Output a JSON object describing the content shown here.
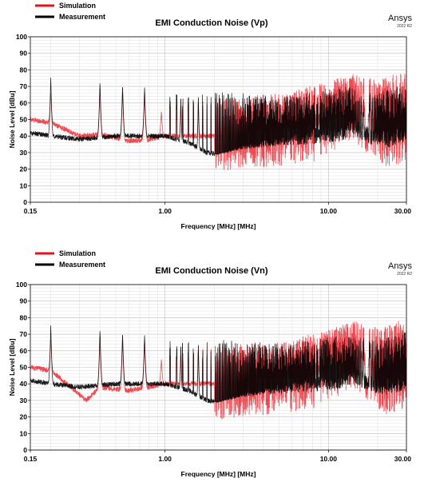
{
  "chart_data": [
    {
      "type": "line",
      "title": "EMI Conduction Noise (Vp)",
      "brand": "Ansys",
      "version": "2022 R2",
      "xlabel": "Frequency [MHz] [MHz]",
      "ylabel": "Noise Level [dBu]",
      "x_scale": "log",
      "xlim": [
        0.15,
        30.0
      ],
      "ylim": [
        0,
        100
      ],
      "x_ticks": [
        0.15,
        1.0,
        10.0,
        30.0
      ],
      "x_tick_labels": [
        "0.15",
        "1.00",
        "10.00",
        "30.00"
      ],
      "y_ticks": [
        0,
        10,
        20,
        30,
        40,
        50,
        60,
        70,
        80,
        90,
        100
      ],
      "y_tick_labels": [
        "0",
        "10",
        "20",
        "30",
        "40",
        "50",
        "60",
        "70",
        "80",
        "90",
        "100"
      ],
      "grid": true,
      "legend_position": "top-left",
      "series": [
        {
          "name": "Simulation",
          "color": "#e8101a",
          "peak_freqs": [
            0.2,
            0.4,
            0.55,
            0.75,
            0.95,
            1.25,
            1.6,
            2.2,
            3.0,
            4.0,
            5.5,
            7.5,
            9.5,
            12.0,
            15.0,
            20.0,
            26.0
          ],
          "peak_levels": [
            66,
            70,
            68,
            67,
            55,
            60,
            62,
            63,
            64,
            65,
            66,
            70,
            72,
            76,
            78,
            74,
            78
          ],
          "floor_freqs": [
            0.15,
            0.2,
            0.3,
            0.4,
            0.6,
            0.8,
            1.0,
            1.5,
            2.0,
            3.0,
            5.0,
            8.0,
            12.0,
            14.0,
            18.0,
            24.0,
            30.0
          ],
          "floor_levels": [
            50,
            48,
            40,
            41,
            37,
            38,
            40,
            40,
            40,
            42,
            44,
            46,
            55,
            60,
            50,
            42,
            48
          ]
        },
        {
          "name": "Measurement",
          "color": "#000000",
          "peak_freqs": [
            0.2,
            0.4,
            0.55,
            0.75,
            1.25,
            1.6,
            2.2,
            3.0,
            4.0,
            5.5,
            7.5,
            9.5,
            13.0,
            20.0,
            30.0
          ],
          "peak_levels": [
            76,
            73,
            71,
            70,
            65,
            66,
            67,
            66,
            65,
            64,
            66,
            68,
            70,
            66,
            72
          ],
          "floor_freqs": [
            0.15,
            0.2,
            0.3,
            0.5,
            0.8,
            1.0,
            1.4,
            1.8,
            2.1,
            3.0,
            5.0,
            8.0,
            12.0,
            14.0,
            18.0,
            24.0,
            30.0
          ],
          "floor_levels": [
            42,
            40,
            38,
            40,
            40,
            40,
            36,
            30,
            29,
            33,
            36,
            38,
            40,
            44,
            38,
            36,
            40
          ]
        }
      ]
    },
    {
      "type": "line",
      "title": "EMI Conduction Noise (Vn)",
      "brand": "Ansys",
      "version": "2022 R2",
      "xlabel": "Frequency [MHz] [MHz]",
      "ylabel": "Noise Level [dBu]",
      "x_scale": "log",
      "xlim": [
        0.15,
        30.0
      ],
      "ylim": [
        0,
        100
      ],
      "x_ticks": [
        0.15,
        1.0,
        10.0,
        30.0
      ],
      "x_tick_labels": [
        "0.15",
        "1.00",
        "10.00",
        "30.00"
      ],
      "y_ticks": [
        0,
        10,
        20,
        30,
        40,
        50,
        60,
        70,
        80,
        90,
        100
      ],
      "y_tick_labels": [
        "0",
        "10",
        "20",
        "30",
        "40",
        "50",
        "60",
        "70",
        "80",
        "90",
        "100"
      ],
      "grid": true,
      "legend_position": "top-left",
      "series": [
        {
          "name": "Simulation",
          "color": "#e8101a",
          "peak_freqs": [
            0.2,
            0.4,
            0.55,
            0.75,
            0.95,
            1.25,
            1.6,
            2.2,
            3.0,
            4.0,
            5.5,
            7.5,
            9.5,
            12.0,
            15.0,
            20.0,
            26.0
          ],
          "peak_levels": [
            67,
            70,
            68,
            67,
            55,
            60,
            62,
            63,
            64,
            65,
            66,
            70,
            72,
            76,
            78,
            74,
            78
          ],
          "floor_freqs": [
            0.15,
            0.2,
            0.28,
            0.33,
            0.4,
            0.6,
            0.8,
            1.0,
            1.5,
            2.0,
            3.0,
            5.0,
            8.0,
            12.0,
            14.0,
            18.0,
            24.0,
            30.0
          ],
          "floor_levels": [
            50,
            48,
            36,
            30,
            38,
            36,
            38,
            40,
            40,
            40,
            42,
            44,
            46,
            55,
            60,
            50,
            42,
            48
          ]
        },
        {
          "name": "Measurement",
          "color": "#000000",
          "peak_freqs": [
            0.2,
            0.4,
            0.55,
            0.75,
            1.25,
            1.6,
            2.2,
            3.0,
            4.0,
            5.5,
            7.5,
            9.5,
            13.0,
            20.0,
            30.0
          ],
          "peak_levels": [
            76,
            73,
            71,
            70,
            65,
            66,
            67,
            66,
            65,
            64,
            66,
            68,
            70,
            66,
            72
          ],
          "floor_freqs": [
            0.15,
            0.2,
            0.3,
            0.5,
            0.8,
            1.0,
            1.4,
            1.8,
            2.1,
            3.0,
            5.0,
            8.0,
            12.0,
            14.0,
            18.0,
            24.0,
            30.0
          ],
          "floor_levels": [
            42,
            40,
            38,
            40,
            40,
            40,
            36,
            30,
            29,
            33,
            36,
            38,
            40,
            44,
            38,
            36,
            40
          ]
        }
      ]
    }
  ]
}
